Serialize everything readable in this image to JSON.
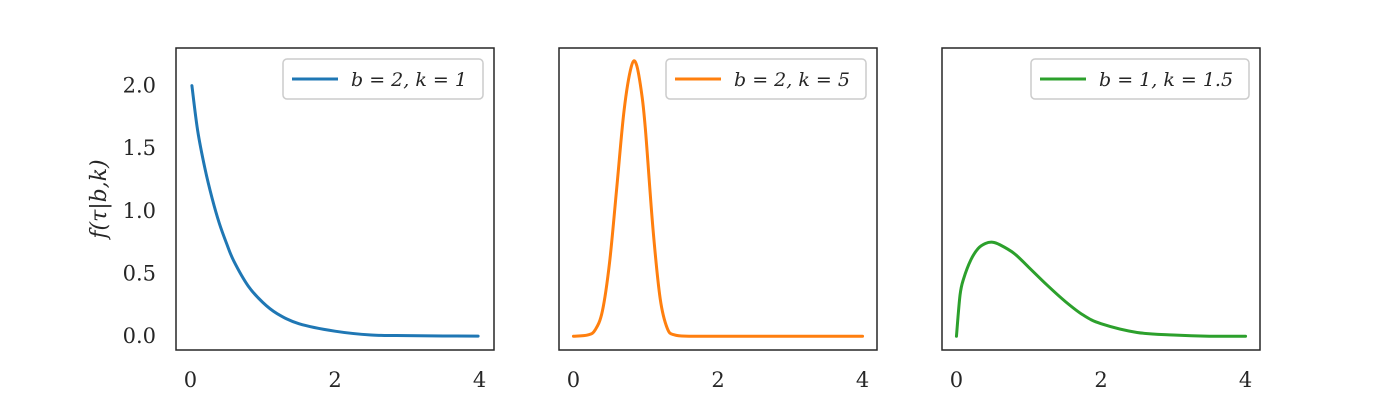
{
  "chart_data": {
    "type": "line",
    "ylabel": "f(τ|b,k)",
    "xlim": [
      -0.2,
      4.2
    ],
    "ylim": [
      -0.11,
      2.3
    ],
    "xticks": [
      0,
      2,
      4
    ],
    "yticks": [
      0.0,
      0.5,
      1.0,
      1.5,
      2.0
    ],
    "xtick_labels": [
      "0",
      "2",
      "4"
    ],
    "ytick_labels": [
      "0.0",
      "0.5",
      "1.0",
      "1.5",
      "2.0"
    ],
    "grid": false,
    "legend_placement": "top-right",
    "panels": [
      {
        "legend": "b = 2, k = 1",
        "color": "#1f77b4",
        "b": 2,
        "k": 1,
        "x": [
          0.02,
          0.1,
          0.2,
          0.3,
          0.4,
          0.5,
          0.6,
          0.8,
          1.0,
          1.2,
          1.5,
          2.0,
          2.5,
          3.0,
          3.5,
          3.98
        ],
        "y": [
          2.0,
          1.64,
          1.34,
          1.1,
          0.9,
          0.74,
          0.6,
          0.4,
          0.27,
          0.18,
          0.1,
          0.04,
          0.01,
          0.005,
          0.002,
          0.001
        ]
      },
      {
        "legend": "b = 2, k = 5",
        "color": "#ff7f0e",
        "b": 2,
        "k": 5,
        "x": [
          0.0,
          0.2,
          0.3,
          0.4,
          0.5,
          0.6,
          0.7,
          0.8,
          0.87,
          0.95,
          1.0,
          1.1,
          1.2,
          1.3,
          1.4,
          1.6,
          2.0,
          3.0,
          4.0
        ],
        "y": [
          0.0,
          0.01,
          0.05,
          0.2,
          0.59,
          1.19,
          1.8,
          2.15,
          2.17,
          1.91,
          1.62,
          0.86,
          0.3,
          0.06,
          0.01,
          0.0,
          0.0,
          0.0,
          0.0
        ]
      },
      {
        "legend": "b = 1, k = 1.5",
        "color": "#2ca02c",
        "b": 1,
        "k": 1.5,
        "x": [
          0.0,
          0.05,
          0.1,
          0.2,
          0.3,
          0.4,
          0.5,
          0.6,
          0.8,
          1.0,
          1.25,
          1.5,
          1.75,
          2.0,
          2.5,
          3.0,
          3.5,
          4.0
        ],
        "y": [
          0.0,
          0.33,
          0.46,
          0.61,
          0.7,
          0.74,
          0.75,
          0.73,
          0.66,
          0.55,
          0.41,
          0.28,
          0.17,
          0.1,
          0.03,
          0.01,
          0.0,
          0.0
        ]
      }
    ]
  }
}
